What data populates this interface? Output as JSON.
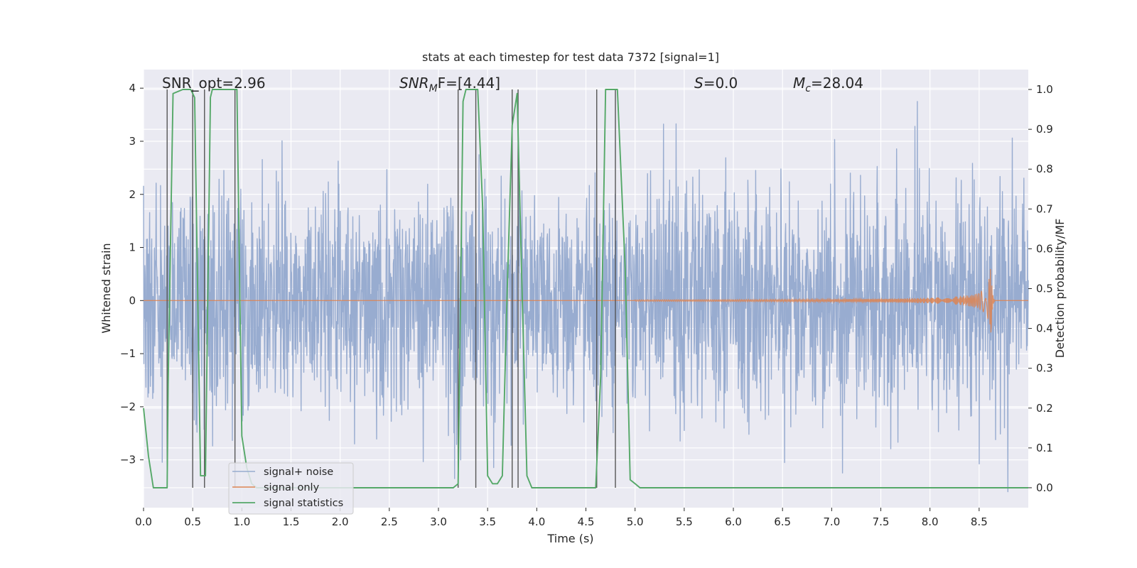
{
  "chart_data": {
    "type": "line",
    "title": "stats at each timestep for test data 7372 [signal=1]",
    "xlabel": "Time (s)",
    "ylabel_left": "Whitened strain",
    "ylabel_right": "Detection probability/MF",
    "xlim": [
      0,
      9.0
    ],
    "ylim_left": [
      -3.9,
      4.35
    ],
    "ylim_right": [
      -0.05,
      1.05
    ],
    "x_ticks": [
      "0.0",
      "0.5",
      "1.0",
      "1.5",
      "2.0",
      "2.5",
      "3.0",
      "3.5",
      "4.0",
      "4.5",
      "5.0",
      "5.5",
      "6.0",
      "6.5",
      "7.0",
      "7.5",
      "8.0",
      "8.5"
    ],
    "y_ticks_left": [
      "−3",
      "−2",
      "−1",
      "0",
      "1",
      "2",
      "3",
      "4"
    ],
    "y_ticks_right": [
      "0.0",
      "0.1",
      "0.2",
      "0.3",
      "0.4",
      "0.5",
      "0.6",
      "0.7",
      "0.8",
      "0.9",
      "1.0"
    ],
    "grid": true,
    "legend_position": "lower-left",
    "colors": {
      "noise": "#98acd0",
      "signal_only": "#dd8452",
      "statistics": "#55a868",
      "event_lines": "#555555",
      "background": "#eaeaf2"
    },
    "annotations": {
      "snr_opt": "SNR_opt=2.96",
      "snr_mf_base": "SNR",
      "snr_mf_sub": "M",
      "snr_mf_rest": "F=[4.44]",
      "s_sym": "S",
      "s_rest": "=0.0",
      "mc_base": "M",
      "mc_sub": "c",
      "mc_rest": "=28.04"
    },
    "series": [
      {
        "name": "signal+ noise",
        "axis": "left",
        "description_envelope": {
          "spike_max": 3.75,
          "spike_min": -3.6,
          "core_band": [
            -1.3,
            1.5
          ]
        }
      },
      {
        "name": "signal only",
        "axis": "left",
        "chirp": {
          "start_x": 5.0,
          "merger_x": 8.62,
          "peak_amplitude": 0.72
        }
      },
      {
        "name": "signal statistics",
        "axis": "right",
        "x": [
          0.0,
          0.05,
          0.1,
          0.24,
          0.25,
          0.3,
          0.4,
          0.48,
          0.52,
          0.58,
          0.63,
          0.68,
          0.7,
          0.95,
          1.0,
          1.05,
          1.1,
          1.15,
          1.2,
          1.25,
          1.5,
          2.0,
          2.5,
          3.0,
          3.15,
          3.2,
          3.25,
          3.28,
          3.3,
          3.35,
          3.4,
          3.45,
          3.5,
          3.55,
          3.6,
          3.65,
          3.7,
          3.75,
          3.8,
          3.85,
          3.9,
          3.95,
          4.0,
          4.5,
          4.6,
          4.65,
          4.7,
          4.75,
          4.8,
          4.82,
          4.9,
          4.95,
          5.0,
          5.05,
          5.1,
          9.0
        ],
        "y": [
          0.2,
          0.08,
          0.0,
          0.0,
          0.26,
          0.99,
          1.0,
          1.0,
          0.98,
          0.03,
          0.03,
          0.98,
          1.0,
          1.0,
          0.13,
          0.05,
          0.01,
          0.0,
          0.0,
          0.0,
          0.0,
          0.0,
          0.0,
          0.0,
          0.0,
          0.01,
          0.97,
          1.0,
          1.0,
          1.0,
          1.0,
          0.7,
          0.03,
          0.01,
          0.01,
          0.03,
          0.5,
          0.91,
          0.99,
          0.5,
          0.03,
          0.0,
          0.0,
          0.0,
          0.0,
          0.28,
          1.0,
          1.0,
          1.0,
          1.0,
          0.55,
          0.02,
          0.01,
          0.0,
          0.0,
          0.0
        ]
      }
    ],
    "event_lines_x": [
      0.24,
      0.5,
      0.62,
      0.93,
      3.2,
      3.38,
      3.75,
      3.81,
      4.61,
      4.8
    ]
  }
}
